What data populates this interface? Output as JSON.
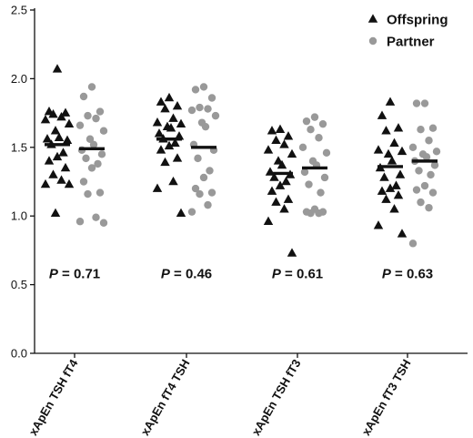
{
  "chart_data": {
    "type": "scatter",
    "ylim": [
      0.0,
      2.5
    ],
    "yticks": [
      "0.0",
      "0.5",
      "1.0",
      "1.5",
      "2.0",
      "2.5"
    ],
    "grid": false,
    "legend_position": "top-right",
    "categories": [
      "xApEn TSH fT4",
      "xApEn fT4 TSH",
      "xApEn TSH fT3",
      "xApEn fT3 TSH"
    ],
    "series": [
      {
        "name": "Offspring",
        "marker": "triangle",
        "color": "#111111",
        "values": [
          [
            2.07,
            1.76,
            1.75,
            1.74,
            1.72,
            1.7,
            1.67,
            1.62,
            1.57,
            1.56,
            1.55,
            1.52,
            1.46,
            1.43,
            1.4,
            1.35,
            1.3,
            1.26,
            1.23,
            1.23,
            1.02
          ],
          [
            1.86,
            1.83,
            1.8,
            1.78,
            1.71,
            1.68,
            1.67,
            1.65,
            1.64,
            1.6,
            1.58,
            1.56,
            1.53,
            1.51,
            1.48,
            1.42,
            1.39,
            1.25,
            1.2,
            1.02
          ],
          [
            1.63,
            1.62,
            1.58,
            1.55,
            1.52,
            1.48,
            1.45,
            1.4,
            1.37,
            1.32,
            1.3,
            1.28,
            1.25,
            1.22,
            1.18,
            1.12,
            1.1,
            1.05,
            0.96,
            0.73
          ],
          [
            1.83,
            1.73,
            1.64,
            1.62,
            1.53,
            1.48,
            1.47,
            1.45,
            1.4,
            1.35,
            1.3,
            1.28,
            1.22,
            1.2,
            1.18,
            1.15,
            1.12,
            1.05,
            0.93,
            0.87
          ]
        ],
        "means": [
          1.52,
          1.56,
          1.31,
          1.36
        ]
      },
      {
        "name": "Partner",
        "marker": "circle",
        "color": "#999999",
        "values": [
          [
            1.94,
            1.87,
            1.76,
            1.73,
            1.71,
            1.66,
            1.62,
            1.56,
            1.52,
            1.48,
            1.45,
            1.42,
            1.38,
            1.35,
            1.25,
            1.17,
            1.16,
            0.99,
            0.96,
            0.95
          ],
          [
            1.94,
            1.92,
            1.86,
            1.79,
            1.78,
            1.77,
            1.73,
            1.68,
            1.65,
            1.52,
            1.48,
            1.42,
            1.33,
            1.28,
            1.2,
            1.17,
            1.16,
            1.08,
            1.03
          ],
          [
            1.72,
            1.69,
            1.67,
            1.63,
            1.57,
            1.5,
            1.46,
            1.4,
            1.37,
            1.32,
            1.28,
            1.23,
            1.17,
            1.05,
            1.03,
            1.03,
            1.02,
            1.02
          ],
          [
            1.82,
            1.82,
            1.64,
            1.63,
            1.55,
            1.5,
            1.47,
            1.45,
            1.43,
            1.4,
            1.37,
            1.33,
            1.3,
            1.22,
            1.19,
            1.17,
            1.1,
            1.06,
            0.8
          ]
        ],
        "means": [
          1.49,
          1.5,
          1.35,
          1.4
        ]
      }
    ],
    "annotations": [
      {
        "prefix": "P",
        "text": " = 0.71"
      },
      {
        "prefix": "P",
        "text": " = 0.46"
      },
      {
        "prefix": "P",
        "text": " = 0.61"
      },
      {
        "prefix": "P",
        "text": " = 0.63"
      }
    ]
  }
}
